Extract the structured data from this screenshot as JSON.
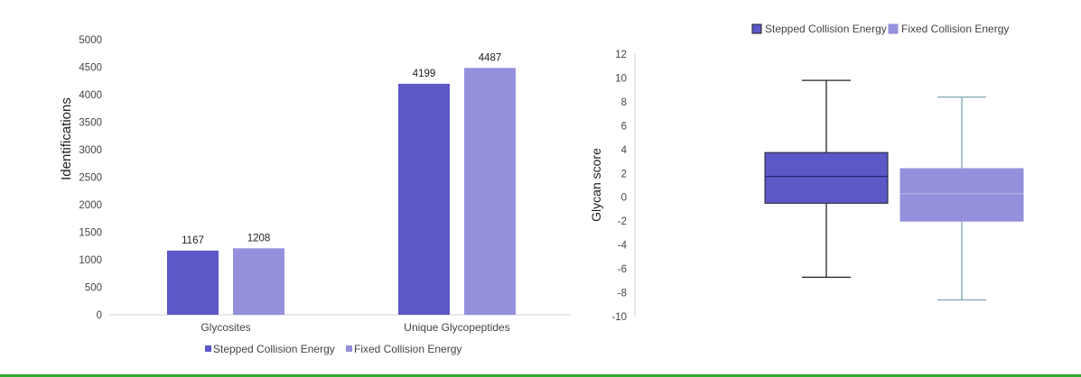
{
  "colors": {
    "stepped": "#5c58c8",
    "fixed": "#9590dc",
    "axis_text": "#444444",
    "label_text": "#222222",
    "axis_line": "#d0d0d0",
    "whisker": "#222222",
    "whisker_fixed": "#7ea8b0",
    "bottom_rule": "#2eaa2e"
  },
  "chart_data": [
    {
      "type": "bar",
      "categories": [
        "Glycosites",
        "Unique Glycopeptides"
      ],
      "series": [
        {
          "name": "Stepped Collision Energy",
          "values": [
            1167,
            4199
          ],
          "color": "#5c58c8"
        },
        {
          "name": "Fixed Collision Energy",
          "values": [
            1208,
            4487
          ],
          "color": "#9590dc"
        }
      ],
      "data_labels": [
        [
          "1167",
          "4199"
        ],
        [
          "1208",
          "4487"
        ]
      ],
      "ylabel": "Identifications",
      "ylim": [
        0,
        5000
      ],
      "yticks": [
        0,
        500,
        1000,
        1500,
        2000,
        2500,
        3000,
        3500,
        4000,
        4500,
        5000
      ],
      "grid": false,
      "legend": {
        "position": "bottom",
        "entries": [
          "Stepped Collision Energy",
          "Fixed Collision Energy"
        ]
      }
    },
    {
      "type": "box",
      "ylabel": "Glycan score",
      "ylim": [
        -10,
        12
      ],
      "yticks": [
        -10,
        -8,
        -6,
        -4,
        -2,
        0,
        2,
        4,
        6,
        8,
        10,
        12
      ],
      "grid": false,
      "series": [
        {
          "name": "Stepped Collision Energy",
          "min": -6.7,
          "q1": -0.5,
          "median": 1.75,
          "q3": 3.75,
          "max": 9.8,
          "color": "#5c58c8"
        },
        {
          "name": "Fixed Collision Energy",
          "min": -8.6,
          "q1": -2.0,
          "median": 0.3,
          "q3": 2.4,
          "max": 8.4,
          "color": "#9590dc"
        }
      ],
      "legend": {
        "position": "top-right",
        "entries": [
          "Stepped Collision Energy",
          "Fixed Collision Energy"
        ]
      }
    }
  ]
}
